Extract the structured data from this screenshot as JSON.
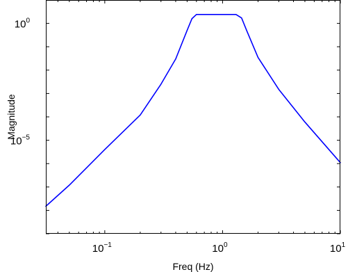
{
  "chart_data": {
    "type": "line",
    "title": "",
    "xlabel": "Freq (Hz)",
    "ylabel": "Magnitude",
    "xscale": "log",
    "yscale": "log",
    "xlim": [
      0.0316,
      10
    ],
    "ylim": [
      1e-09,
      10
    ],
    "grid": false,
    "x_tick_labels": [
      {
        "value": 0.1,
        "base": "10",
        "exponent": "−1"
      },
      {
        "value": 1,
        "base": "10",
        "exponent": "0"
      },
      {
        "value": 10,
        "base": "10",
        "exponent": "1"
      }
    ],
    "y_tick_labels": [
      {
        "value": 1,
        "base": "10",
        "exponent": "0"
      },
      {
        "value": 1e-05,
        "base": "10",
        "exponent": "−5"
      }
    ],
    "series": [
      {
        "color": "#0000ff",
        "x": [
          0.0316,
          0.05,
          0.1,
          0.2,
          0.3,
          0.4,
          0.5,
          0.55,
          0.6,
          1.0,
          1.3,
          1.45,
          1.6,
          2.0,
          3.0,
          5.0,
          10.0
        ],
        "y": [
          1.5e-08,
          1.2e-07,
          4e-06,
          0.00012,
          0.0025,
          0.03,
          0.5,
          1.6,
          2.4,
          2.4,
          2.4,
          1.7,
          0.5,
          0.035,
          0.0015,
          6e-05,
          1.1e-06
        ]
      }
    ]
  }
}
